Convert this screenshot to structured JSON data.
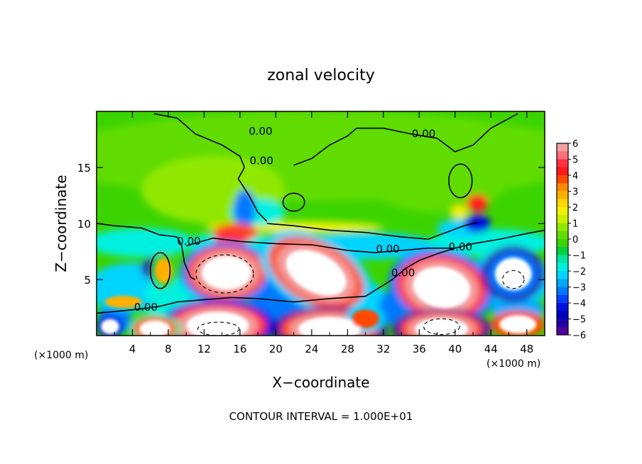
{
  "chart_data": {
    "type": "heatmap",
    "title": "zonal velocity",
    "xlabel": "X−coordinate",
    "ylabel": "Z−coordinate",
    "x_unit_left": "(×1000 m)",
    "x_unit_right": "(×1000 m)",
    "footer": "CONTOUR INTERVAL = 1.000E+01",
    "xlim": [
      0,
      50
    ],
    "ylim": [
      0,
      20
    ],
    "x_ticks": [
      4,
      8,
      12,
      16,
      20,
      24,
      28,
      32,
      36,
      40,
      44,
      48
    ],
    "y_ticks": [
      5,
      10,
      15
    ],
    "contour_label": "0.00",
    "colorbar": {
      "ticks": [
        "6",
        "5",
        "4",
        "3",
        "2",
        "1",
        "0",
        "−1",
        "−2",
        "−3",
        "−4",
        "−5",
        "−6"
      ],
      "range": [
        -6,
        6
      ],
      "colors": {
        "6": "#f4a0a0",
        "5.5": "#ff6f7a",
        "5": "#ff3040",
        "4.5": "#ff1a1a",
        "4": "#ff4a00",
        "3.5": "#ff8a00",
        "3": "#ffb000",
        "2.5": "#ffd800",
        "2": "#f0f000",
        "1.5": "#c8f000",
        "1": "#90e800",
        "0.5": "#60dc00",
        "0": "#3cd400",
        "-0.5": "#00d040",
        "-1": "#00e6a0",
        "-1.5": "#00f0e0",
        "-2": "#00d4ff",
        "-2.5": "#00a8ff",
        "-3": "#0078ff",
        "-3.5": "#0040ff",
        "-4": "#0010e0",
        "-4.5": "#0000c0",
        "-5": "#2000a8",
        "-5.5": "#5000a0",
        "-6": "#8000a0"
      }
    },
    "saturated_color": "#ffffff",
    "contour_labels_at": [
      {
        "x": 18.3,
        "z": 17.9
      },
      {
        "x": 36.5,
        "z": 17.7
      },
      {
        "x": 18.4,
        "z": 15.3
      },
      {
        "x": 10.3,
        "z": 8.1
      },
      {
        "x": 5.5,
        "z": 2.2
      },
      {
        "x": 32.5,
        "z": 7.4
      },
      {
        "x": 34.2,
        "z": 5.3
      },
      {
        "x": 40.6,
        "z": 7.6
      }
    ]
  }
}
